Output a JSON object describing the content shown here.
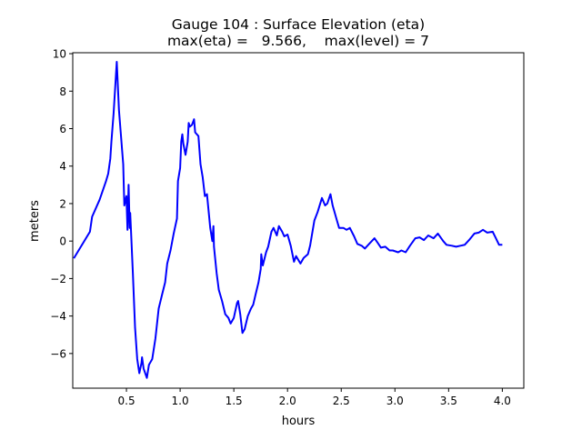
{
  "chart_data": {
    "type": "line",
    "title": "Gauge 104 : Surface Elevation (eta)",
    "subtitle": "max(eta) =   9.566,    max(level) = 7",
    "xlabel": "hours",
    "ylabel": "meters",
    "xlim": [
      0,
      4.2
    ],
    "ylim": [
      -7.85,
      10.05
    ],
    "xticks": [
      0.5,
      1.0,
      1.5,
      2.0,
      2.5,
      3.0,
      3.5,
      4.0
    ],
    "xtick_labels": [
      "0.5",
      "1.0",
      "1.5",
      "2.0",
      "2.5",
      "3.0",
      "3.5",
      "4.0"
    ],
    "yticks": [
      -6,
      -4,
      -2,
      0,
      2,
      4,
      6,
      8,
      10
    ],
    "ytick_labels": [
      "−6",
      "−4",
      "−2",
      "0",
      "2",
      "4",
      "6",
      "8",
      "10"
    ],
    "grid": false,
    "series": [
      {
        "name": "eta",
        "color": "#0000ff",
        "x": [
          0.01,
          0.16,
          0.18,
          0.25,
          0.31,
          0.33,
          0.35,
          0.36,
          0.38,
          0.41,
          0.43,
          0.47,
          0.48,
          0.5,
          0.51,
          0.52,
          0.53,
          0.535,
          0.56,
          0.58,
          0.6,
          0.62,
          0.64,
          0.645,
          0.66,
          0.69,
          0.71,
          0.74,
          0.77,
          0.8,
          0.83,
          0.86,
          0.88,
          0.91,
          0.94,
          0.97,
          0.98,
          1.0,
          1.01,
          1.02,
          1.03,
          1.04,
          1.05,
          1.07,
          1.08,
          1.09,
          1.11,
          1.13,
          1.14,
          1.17,
          1.19,
          1.21,
          1.23,
          1.25,
          1.28,
          1.3,
          1.31,
          1.315,
          1.34,
          1.36,
          1.39,
          1.42,
          1.45,
          1.47,
          1.5,
          1.53,
          1.54,
          1.56,
          1.58,
          1.6,
          1.63,
          1.66,
          1.68,
          1.7,
          1.73,
          1.75,
          1.755,
          1.77,
          1.8,
          1.82,
          1.85,
          1.87,
          1.9,
          1.92,
          1.95,
          1.97,
          2.0,
          2.03,
          2.06,
          2.08,
          2.12,
          2.15,
          2.19,
          2.21,
          2.25,
          2.28,
          2.32,
          2.35,
          2.37,
          2.4,
          2.42,
          2.46,
          2.48,
          2.52,
          2.55,
          2.58,
          2.62,
          2.65,
          2.69,
          2.72,
          2.76,
          2.81,
          2.84,
          2.87,
          2.91,
          2.95,
          2.98,
          3.03,
          3.06,
          3.1,
          3.14,
          3.19,
          3.23,
          3.27,
          3.31,
          3.36,
          3.4,
          3.45,
          3.48,
          3.53,
          3.57,
          3.61,
          3.65,
          3.69,
          3.74,
          3.78,
          3.82,
          3.86,
          3.91,
          3.94,
          3.97,
          4.0
        ],
        "y": [
          -0.92,
          0.5,
          1.3,
          2.2,
          3.2,
          3.6,
          4.4,
          5.3,
          6.8,
          9.566,
          7.0,
          4.1,
          1.9,
          2.4,
          0.6,
          3.0,
          0.7,
          1.5,
          -1.7,
          -4.6,
          -6.3,
          -7.05,
          -6.5,
          -6.2,
          -6.8,
          -7.3,
          -6.6,
          -6.3,
          -5.2,
          -3.6,
          -2.9,
          -2.2,
          -1.2,
          -0.5,
          0.4,
          1.2,
          3.2,
          3.9,
          5.3,
          5.7,
          5.2,
          4.9,
          4.6,
          5.3,
          6.3,
          6.1,
          6.2,
          6.5,
          5.8,
          5.6,
          4.1,
          3.4,
          2.4,
          2.5,
          0.7,
          0.0,
          0.8,
          -0.3,
          -1.7,
          -2.6,
          -3.2,
          -3.9,
          -4.1,
          -4.4,
          -4.1,
          -3.3,
          -3.2,
          -3.9,
          -4.9,
          -4.7,
          -4.0,
          -3.6,
          -3.4,
          -2.9,
          -2.2,
          -1.5,
          -0.7,
          -1.3,
          -0.6,
          -0.3,
          0.5,
          0.7,
          0.3,
          0.8,
          0.5,
          0.25,
          0.35,
          -0.25,
          -1.1,
          -0.8,
          -1.2,
          -0.9,
          -0.7,
          -0.25,
          1.1,
          1.55,
          2.3,
          1.9,
          2.0,
          2.5,
          1.9,
          1.1,
          0.7,
          0.7,
          0.6,
          0.7,
          0.25,
          -0.15,
          -0.25,
          -0.4,
          -0.15,
          0.15,
          -0.1,
          -0.35,
          -0.3,
          -0.5,
          -0.5,
          -0.6,
          -0.5,
          -0.6,
          -0.25,
          0.15,
          0.2,
          0.05,
          0.3,
          0.15,
          0.4,
          0.0,
          -0.2,
          -0.25,
          -0.3,
          -0.25,
          -0.2,
          0.05,
          0.4,
          0.45,
          0.6,
          0.45,
          0.5,
          0.15,
          -0.2,
          -0.2
        ]
      }
    ]
  }
}
